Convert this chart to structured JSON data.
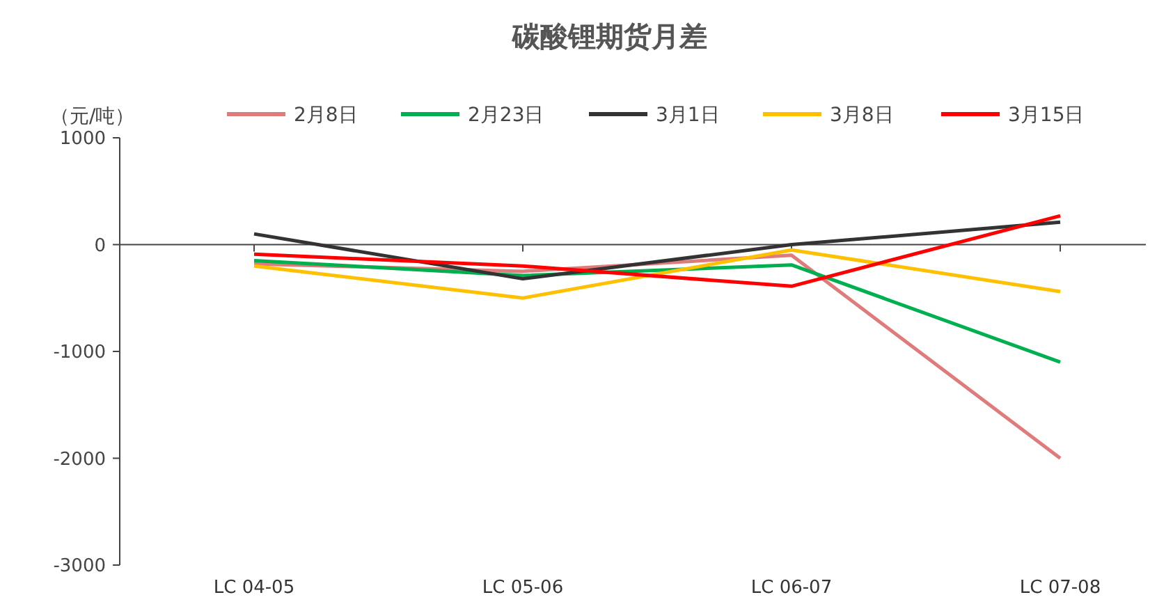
{
  "chart_data": {
    "type": "line",
    "title": "碳酸锂期货月差",
    "ylabel": "（元/吨）",
    "categories": [
      "LC 04-05",
      "LC 05-06",
      "LC 06-07",
      "LC 07-08"
    ],
    "series": [
      {
        "name": "2月8日",
        "color": "#e07b7b",
        "values": [
          -180,
          -250,
          -100,
          -2000
        ]
      },
      {
        "name": "2月23日",
        "color": "#00b050",
        "values": [
          -150,
          -290,
          -190,
          -1100
        ]
      },
      {
        "name": "3月1日",
        "color": "#333333",
        "values": [
          100,
          -320,
          0,
          210
        ]
      },
      {
        "name": "3月8日",
        "color": "#ffc000",
        "values": [
          -200,
          -500,
          -50,
          -440
        ]
      },
      {
        "name": "3月15日",
        "color": "#ff0000",
        "values": [
          -90,
          -200,
          -390,
          270
        ]
      }
    ],
    "ylim": [
      -3000,
      1000
    ],
    "yticks": [
      -3000,
      -2000,
      -1000,
      0,
      1000
    ],
    "legend": "top",
    "marker": "none",
    "line_style": "solid"
  }
}
